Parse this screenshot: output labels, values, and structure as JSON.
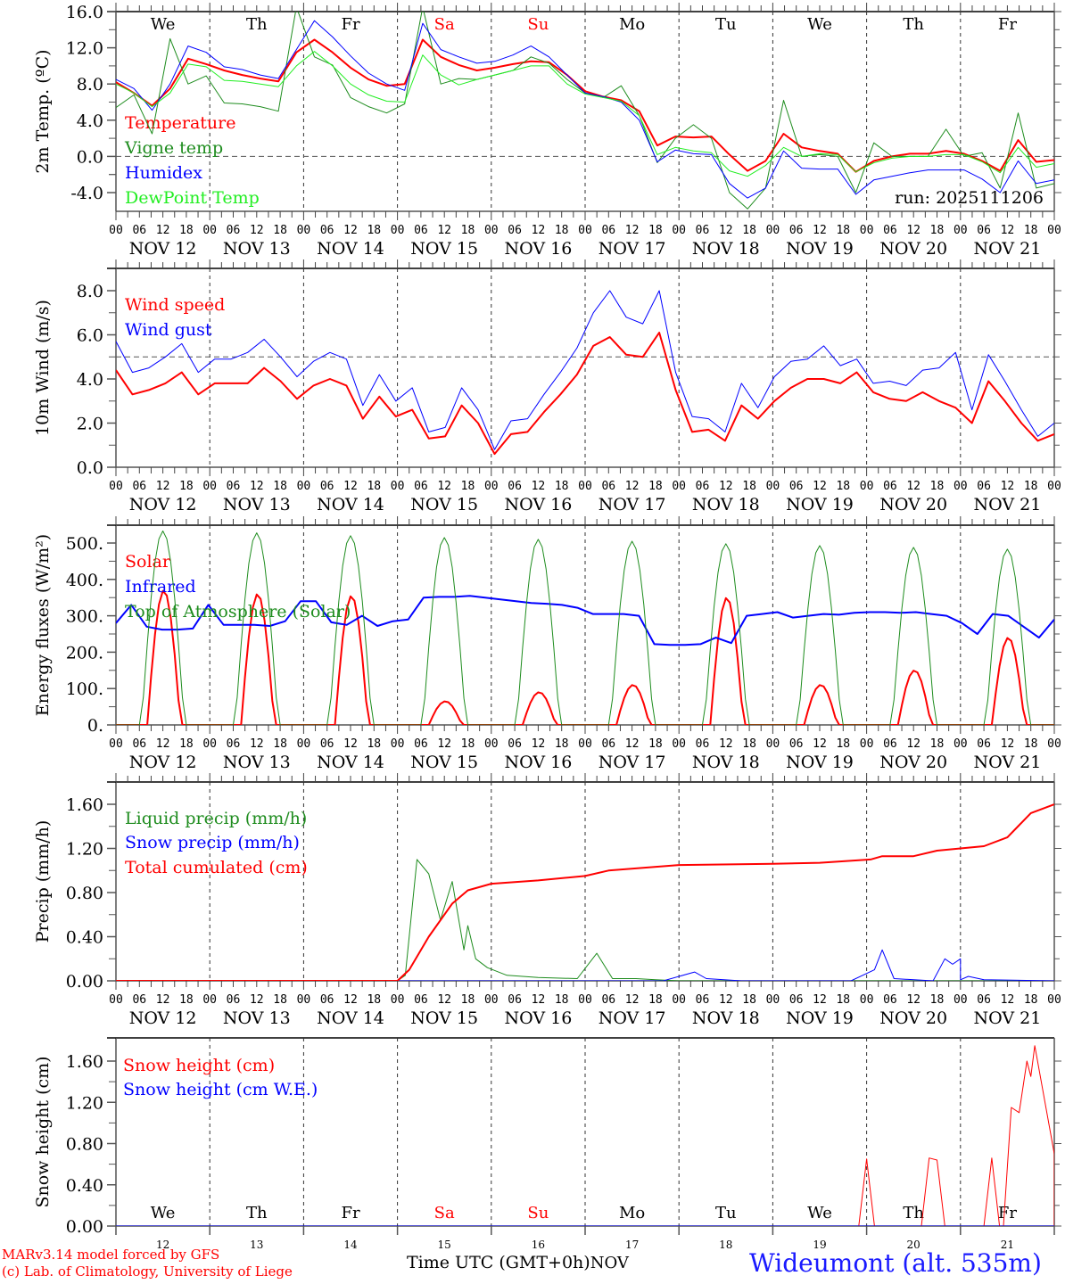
{
  "footer": {
    "credit_line1": "MARv3.14 model forced by GFS",
    "credit_line2": "(c) Lab. of Climatology, University of Liege",
    "xlabel": "Time UTC (GMT+0h)",
    "month": "NOV",
    "station": "Wideumont (alt. 535m)"
  },
  "run_label": "run: 2025111206",
  "colors": {
    "red": "#ff0000",
    "green": "#1e8c1e",
    "blue": "#0000ff",
    "lightgreen": "#22ee22",
    "axis": "#000000",
    "weekend": "#ff0000"
  },
  "chart_data": [
    {
      "type": "line",
      "id": "temp",
      "ylabel": "2m Temp. (ºC)",
      "ylim": [
        -6,
        16
      ],
      "yticks": [
        "16.0",
        "12.0",
        "8.0",
        "4.0",
        "0.0",
        "-4.0"
      ],
      "ytick_values": [
        16,
        12,
        8,
        4,
        0,
        -4
      ],
      "refline": 0,
      "x_hours_step": 6,
      "day_labels": [
        "We",
        "Th",
        "Fr",
        "Sa",
        "Su",
        "Mo",
        "Tu",
        "We",
        "Th",
        "Fr"
      ],
      "weekend_days": [
        3,
        4
      ],
      "date_labels": [
        "NOV 12",
        "NOV 13",
        "NOV 14",
        "NOV 15",
        "NOV 16",
        "NOV 17",
        "NOV 18",
        "NOV 19",
        "NOV 20",
        "NOV 21"
      ],
      "hour_labels": [
        "00",
        "06",
        "12",
        "18"
      ],
      "series": [
        {
          "name": "Temperature",
          "color": "red",
          "width": 2,
          "values": [
            8.2,
            7.0,
            5.6,
            7.5,
            10.8,
            10.2,
            9.5,
            9.0,
            8.6,
            8.3,
            11.5,
            12.9,
            11.5,
            9.8,
            8.5,
            7.8,
            8.0,
            12.9,
            11.0,
            10.1,
            9.5,
            9.8,
            10.2,
            10.5,
            10.4,
            9.0,
            7.2,
            6.6,
            6.2,
            5.0,
            1.2,
            2.2,
            2.1,
            2.2,
            0.2,
            -1.6,
            -0.5,
            2.5,
            1.0,
            0.6,
            0.3,
            -1.7,
            -0.5,
            0.0,
            0.3,
            0.3,
            0.6,
            0.3,
            -0.5,
            -1.6,
            1.8,
            -0.6,
            -0.4
          ]
        },
        {
          "name": "Vigne temp",
          "color": "green",
          "width": 1,
          "values": [
            5.4,
            6.8,
            2.5,
            13.0,
            8.0,
            8.9,
            5.9,
            5.8,
            5.5,
            5.0,
            16.5,
            11.0,
            10.1,
            6.5,
            5.5,
            4.8,
            5.8,
            16.5,
            8.0,
            8.6,
            8.5,
            9.0,
            9.5,
            11.0,
            10.3,
            8.5,
            7.0,
            6.5,
            7.8,
            4.5,
            -0.7,
            2.0,
            3.5,
            2.0,
            -4.0,
            -5.8,
            -3.5,
            6.2,
            0.0,
            0.2,
            0.0,
            -4.0,
            1.5,
            0.0,
            0.0,
            0.0,
            3.0,
            0.0,
            0.4,
            -3.5,
            4.8,
            -3.5,
            -3.0
          ]
        },
        {
          "name": "Humidex",
          "color": "blue",
          "width": 1,
          "values": [
            8.5,
            7.5,
            5.1,
            8.0,
            12.2,
            11.5,
            9.9,
            9.6,
            9.0,
            8.6,
            11.8,
            15.0,
            13.2,
            11.1,
            9.2,
            8.0,
            7.3,
            14.7,
            11.8,
            11.0,
            10.3,
            10.5,
            11.2,
            12.2,
            11.0,
            9.0,
            7.0,
            6.6,
            6.0,
            4.0,
            -0.6,
            0.7,
            0.3,
            0.2,
            -3.0,
            -4.6,
            -3.5,
            0.6,
            -1.3,
            -1.4,
            -1.4,
            -4.2,
            -2.6,
            -2.2,
            -1.8,
            -1.5,
            -1.5,
            -1.5,
            -2.5,
            -4.0,
            -0.5,
            -3.0,
            -2.6
          ]
        },
        {
          "name": "DewPoint Temp",
          "color": "lightgreen",
          "width": 1,
          "values": [
            8.0,
            7.0,
            5.5,
            7.0,
            10.2,
            9.9,
            8.4,
            8.3,
            8.0,
            7.7,
            10.0,
            11.6,
            10.0,
            8.0,
            6.8,
            6.1,
            6.0,
            11.2,
            9.0,
            7.9,
            8.5,
            9.0,
            9.5,
            10.0,
            10.0,
            8.0,
            6.9,
            6.5,
            6.1,
            4.5,
            0.2,
            1.0,
            0.6,
            0.4,
            -1.6,
            -2.2,
            -1.0,
            1.0,
            0.0,
            0.3,
            0.2,
            -1.7,
            -0.7,
            -0.2,
            0.0,
            0.0,
            0.2,
            0.2,
            -0.6,
            -1.8,
            1.0,
            -1.2,
            -0.8
          ]
        }
      ]
    },
    {
      "type": "line",
      "id": "wind",
      "ylabel": "10m Wind (m/s)",
      "ylim": [
        0,
        9
      ],
      "yticks": [
        "8.0",
        "6.0",
        "4.0",
        "2.0",
        "0.0"
      ],
      "ytick_values": [
        8,
        6,
        4,
        2,
        0
      ],
      "refline": 5,
      "date_labels": [
        "NOV 12",
        "NOV 13",
        "NOV 14",
        "NOV 15",
        "NOV 16",
        "NOV 17",
        "NOV 18",
        "NOV 19",
        "NOV 20",
        "NOV 21"
      ],
      "hour_labels": [
        "00",
        "06",
        "12",
        "18"
      ],
      "series": [
        {
          "name": "Wind speed",
          "color": "red",
          "width": 2,
          "values": [
            4.4,
            3.3,
            3.5,
            3.8,
            4.3,
            3.3,
            3.8,
            3.8,
            3.8,
            4.5,
            3.9,
            3.1,
            3.7,
            4.0,
            3.7,
            2.2,
            3.2,
            2.3,
            2.6,
            1.3,
            1.4,
            2.8,
            2.0,
            0.6,
            1.5,
            1.6,
            2.5,
            3.3,
            4.2,
            5.5,
            5.9,
            5.1,
            5.0,
            6.1,
            3.5,
            1.6,
            1.7,
            1.2,
            2.8,
            2.2,
            3.0,
            3.6,
            4.0,
            4.0,
            3.8,
            4.3,
            3.4,
            3.1,
            3.0,
            3.4,
            3.0,
            2.7,
            2.0,
            3.9,
            3.0,
            2.0,
            1.2,
            1.5
          ]
        },
        {
          "name": "Wind gust",
          "color": "blue",
          "width": 1,
          "values": [
            5.7,
            4.3,
            4.5,
            5.0,
            5.6,
            4.3,
            4.9,
            4.9,
            5.2,
            5.8,
            5.0,
            4.1,
            4.8,
            5.2,
            4.9,
            2.8,
            4.2,
            3.0,
            3.6,
            1.6,
            1.8,
            3.6,
            2.6,
            0.8,
            2.1,
            2.2,
            3.3,
            4.3,
            5.4,
            7.0,
            8.0,
            6.8,
            6.5,
            8.0,
            4.3,
            2.3,
            2.2,
            1.6,
            3.8,
            2.7,
            4.1,
            4.8,
            4.9,
            5.5,
            4.6,
            4.9,
            3.8,
            3.9,
            3.7,
            4.4,
            4.5,
            5.2,
            2.6,
            5.1,
            3.9,
            2.6,
            1.4,
            2.0
          ]
        }
      ]
    },
    {
      "type": "line",
      "id": "energy",
      "ylabel": "Energy fluxes (W/m²)",
      "ylim": [
        0,
        550
      ],
      "yticks": [
        "500.",
        "400.",
        "300.",
        "200.",
        "100.",
        "0."
      ],
      "ytick_values": [
        500,
        400,
        300,
        200,
        100,
        0
      ],
      "date_labels": [
        "NOV 12",
        "NOV 13",
        "NOV 14",
        "NOV 15",
        "NOV 16",
        "NOV 17",
        "NOV 18",
        "NOV 19",
        "NOV 20",
        "NOV 21"
      ],
      "hour_labels": [
        "00",
        "06",
        "12",
        "18"
      ],
      "daily_peaks": {
        "Solar": [
          370,
          360,
          355,
          65,
          90,
          110,
          350,
          110,
          150,
          240
        ],
        "Top of Atmosphere (Solar)": [
          533,
          528,
          520,
          515,
          510,
          505,
          498,
          493,
          488,
          483
        ]
      },
      "series": [
        {
          "name": "Solar",
          "color": "red",
          "width": 2,
          "kind": "diurnal"
        },
        {
          "name": "Infrared",
          "color": "blue",
          "width": 2,
          "values": [
            280,
            330,
            270,
            262,
            262,
            265,
            330,
            275,
            275,
            275,
            272,
            285,
            340,
            340,
            282,
            275,
            300,
            272,
            285,
            290,
            350,
            352,
            352,
            355,
            350,
            345,
            340,
            335,
            333,
            330,
            322,
            305,
            305,
            305,
            300,
            222,
            220,
            220,
            222,
            240,
            225,
            300,
            305,
            310,
            295,
            300,
            305,
            303,
            308,
            310,
            310,
            308,
            310,
            305,
            300,
            280,
            250,
            305,
            300,
            270,
            240,
            290
          ]
        },
        {
          "name": "Top of Atmosphere (Solar)",
          "color": "green",
          "width": 1,
          "kind": "diurnal"
        }
      ]
    },
    {
      "type": "line",
      "id": "precip",
      "ylabel": "Precip (mm/h)",
      "ylim": [
        0,
        1.8
      ],
      "yticks": [
        "1.60",
        "1.20",
        "0.80",
        "0.40",
        "0.00"
      ],
      "ytick_values": [
        1.6,
        1.2,
        0.8,
        0.4,
        0
      ],
      "date_labels": [
        "NOV 12",
        "NOV 13",
        "NOV 14",
        "NOV 15",
        "NOV 16",
        "NOV 17",
        "NOV 18",
        "NOV 19",
        "NOV 20",
        "NOV 21"
      ],
      "hour_labels": [
        "00",
        "06",
        "12",
        "18"
      ],
      "series": [
        {
          "name": "Liquid precip (mm/h)",
          "color": "green",
          "width": 1,
          "points": [
            [
              0,
              0
            ],
            [
              72,
              0
            ],
            [
              74,
              0.05
            ],
            [
              77,
              1.1
            ],
            [
              80,
              0.97
            ],
            [
              83,
              0.55
            ],
            [
              86,
              0.9
            ],
            [
              89,
              0.28
            ],
            [
              90,
              0.5
            ],
            [
              92,
              0.2
            ],
            [
              95,
              0.12
            ],
            [
              100,
              0.05
            ],
            [
              108,
              0.03
            ],
            [
              118,
              0.02
            ],
            [
              123,
              0.25
            ],
            [
              127,
              0.02
            ],
            [
              133,
              0.02
            ],
            [
              138,
              0.01
            ],
            [
              144,
              0
            ],
            [
              240,
              0
            ]
          ]
        },
        {
          "name": "Snow precip (mm/h)",
          "color": "blue",
          "width": 1,
          "points": [
            [
              0,
              0
            ],
            [
              140,
              0
            ],
            [
              148,
              0.08
            ],
            [
              151,
              0.02
            ],
            [
              160,
              0
            ],
            [
              188,
              0
            ],
            [
              194,
              0.1
            ],
            [
              196,
              0.28
            ],
            [
              199,
              0.02
            ],
            [
              209,
              0
            ],
            [
              212,
              0.2
            ],
            [
              214,
              0.15
            ],
            [
              216,
              0.2
            ],
            [
              218,
              0.04
            ],
            [
              222,
              0.01
            ],
            [
              216,
              0.01
            ],
            [
              240,
              0
            ]
          ]
        },
        {
          "name": "Total cumulated (cm)",
          "color": "red",
          "width": 2,
          "points": [
            [
              0,
              0
            ],
            [
              72,
              0
            ],
            [
              75,
              0.1
            ],
            [
              80,
              0.4
            ],
            [
              86,
              0.7
            ],
            [
              90,
              0.82
            ],
            [
              96,
              0.88
            ],
            [
              108,
              0.91
            ],
            [
              120,
              0.95
            ],
            [
              126,
              1.0
            ],
            [
              144,
              1.05
            ],
            [
              168,
              1.06
            ],
            [
              180,
              1.07
            ],
            [
              193,
              1.1
            ],
            [
              196,
              1.13
            ],
            [
              204,
              1.13
            ],
            [
              210,
              1.18
            ],
            [
              216,
              1.2
            ],
            [
              222,
              1.22
            ],
            [
              228,
              1.3
            ],
            [
              234,
              1.52
            ],
            [
              240,
              1.6
            ]
          ]
        }
      ]
    },
    {
      "type": "line",
      "id": "snow",
      "ylabel": "Snow height (cm)",
      "ylim": [
        0,
        1.8
      ],
      "yticks": [
        "1.60",
        "1.20",
        "0.80",
        "0.40",
        "0.00"
      ],
      "ytick_values": [
        1.6,
        1.2,
        0.8,
        0.4,
        0
      ],
      "day_labels": [
        "We",
        "Th",
        "Fr",
        "Sa",
        "Su",
        "Mo",
        "Tu",
        "We",
        "Th",
        "Fr"
      ],
      "weekend_days": [
        3,
        4
      ],
      "day_numbers": [
        "12",
        "13",
        "14",
        "15",
        "16",
        "17",
        "18",
        "19",
        "20",
        "21"
      ],
      "series": [
        {
          "name": "Snow height (cm)",
          "color": "red",
          "width": 1,
          "points": [
            [
              0,
              0
            ],
            [
              190,
              0
            ],
            [
              192,
              0.65
            ],
            [
              194,
              0
            ],
            [
              206,
              0
            ],
            [
              208,
              0.66
            ],
            [
              210,
              0.64
            ],
            [
              212,
              0
            ],
            [
              222,
              0
            ],
            [
              224,
              0.66
            ],
            [
              226,
              0
            ],
            [
              227,
              0
            ],
            [
              229,
              1.15
            ],
            [
              231,
              1.1
            ],
            [
              233,
              1.6
            ],
            [
              234,
              1.45
            ],
            [
              235,
              1.75
            ],
            [
              240,
              0.7
            ],
            [
              241,
              0
            ],
            [
              240,
              0
            ]
          ]
        },
        {
          "name": "Snow height (cm W.E.)",
          "color": "blue",
          "width": 1,
          "points": [
            [
              0,
              0
            ],
            [
              240,
              0
            ]
          ]
        }
      ]
    }
  ]
}
